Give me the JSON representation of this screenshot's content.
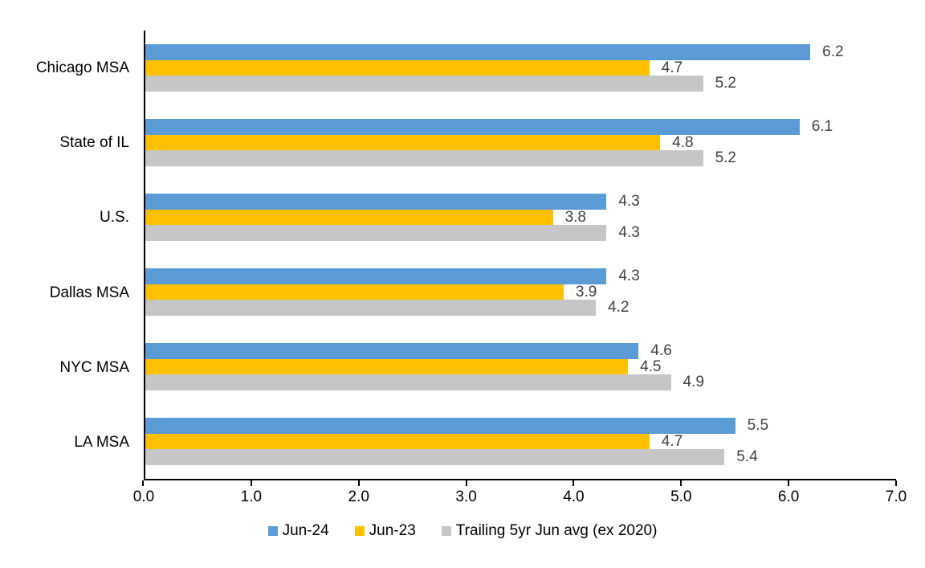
{
  "chart_data": {
    "type": "bar",
    "orientation": "horizontal",
    "title": "",
    "xlabel": "",
    "ylabel": "",
    "xlim": [
      0,
      7
    ],
    "x_ticks": [
      "0.0",
      "1.0",
      "2.0",
      "3.0",
      "4.0",
      "5.0",
      "6.0",
      "7.0"
    ],
    "x_tick_values": [
      0,
      1,
      2,
      3,
      4,
      5,
      6,
      7
    ],
    "grid": false,
    "value_labels": true,
    "legend_position": "bottom",
    "categories": [
      "Chicago MSA",
      "State of IL",
      "U.S.",
      "Dallas MSA",
      "NYC MSA",
      "LA MSA"
    ],
    "series": [
      {
        "name": "Jun-24",
        "color": "#5B9BD5",
        "values": [
          6.2,
          6.1,
          4.3,
          4.3,
          4.6,
          5.5
        ]
      },
      {
        "name": "Jun-23",
        "color": "#FFC000",
        "values": [
          4.7,
          4.8,
          3.8,
          3.9,
          4.5,
          4.7
        ]
      },
      {
        "name": "Trailing 5yr Jun avg (ex 2020)",
        "color": "#C6C6C6",
        "values": [
          5.2,
          5.2,
          4.3,
          4.2,
          4.9,
          5.4
        ]
      }
    ],
    "colors": {
      "axis": "#000000",
      "tick_label": "#000000",
      "category_label": "#000000",
      "value_label": "#404040",
      "background": "#ffffff"
    }
  }
}
